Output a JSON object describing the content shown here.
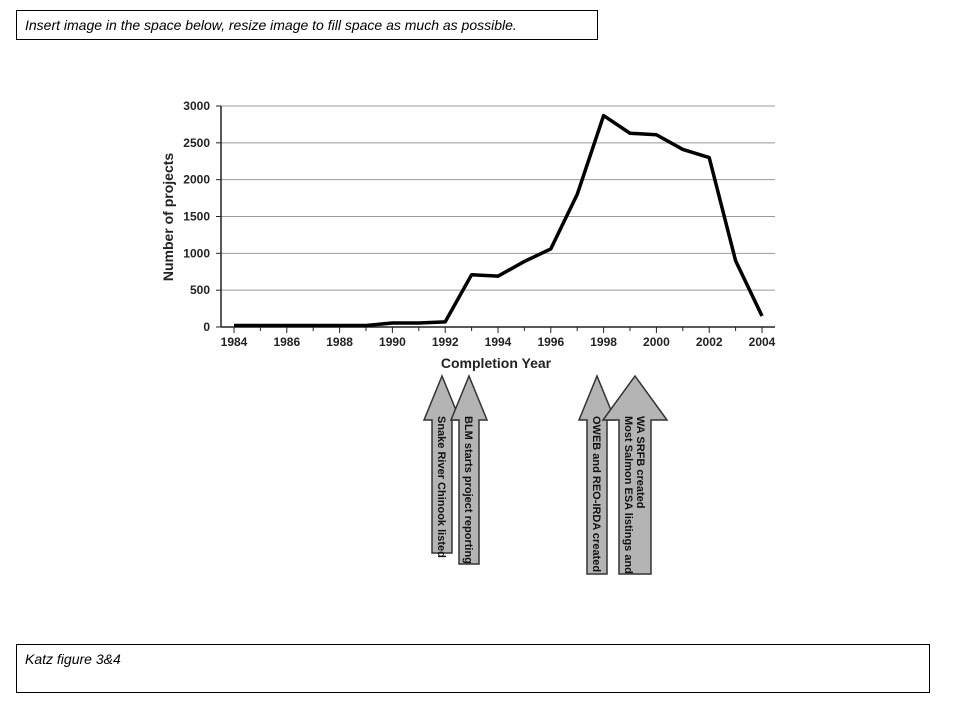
{
  "instruction": "Insert image in the space below, resize image to fill space as much as possible.",
  "caption": "Katz figure 3&4",
  "chart_data": {
    "type": "line",
    "xlabel": "Completion Year",
    "ylabel": "Number of projects",
    "xlim": [
      1984,
      2004
    ],
    "ylim": [
      0,
      3000
    ],
    "x_ticks": [
      1984,
      1986,
      1988,
      1990,
      1992,
      1994,
      1996,
      1998,
      2000,
      2002,
      2004
    ],
    "y_ticks": [
      0,
      500,
      1000,
      1500,
      2000,
      2500,
      3000
    ],
    "grid": true,
    "series": [
      {
        "x": [
          1984,
          1985,
          1986,
          1987,
          1988,
          1989,
          1990,
          1991,
          1992,
          1993,
          1994,
          1995,
          1996,
          1997,
          1998,
          1999,
          2000,
          2001,
          2002,
          2003,
          2004
        ],
        "y": [
          20,
          20,
          20,
          20,
          20,
          20,
          55,
          55,
          70,
          710,
          690,
          890,
          1060,
          1800,
          2870,
          2630,
          2610,
          2410,
          2300,
          900,
          150
        ]
      }
    ],
    "annotations": [
      {
        "year": 1992,
        "lines": [
          "Snake River Chinook listed"
        ]
      },
      {
        "year": 1993,
        "lines": [
          "BLM starts project reporting"
        ]
      },
      {
        "year": 1998,
        "lines": [
          "OWEB and REO-IRDA created"
        ]
      },
      {
        "year": 1999,
        "lines": [
          "Most Salmon ESA listings and",
          "WA SRFB created"
        ]
      }
    ],
    "colors": {
      "line": "#000000",
      "grid": "#999999",
      "arrow_fill": "#b4b4b4",
      "arrow_stroke": "#333333"
    }
  }
}
